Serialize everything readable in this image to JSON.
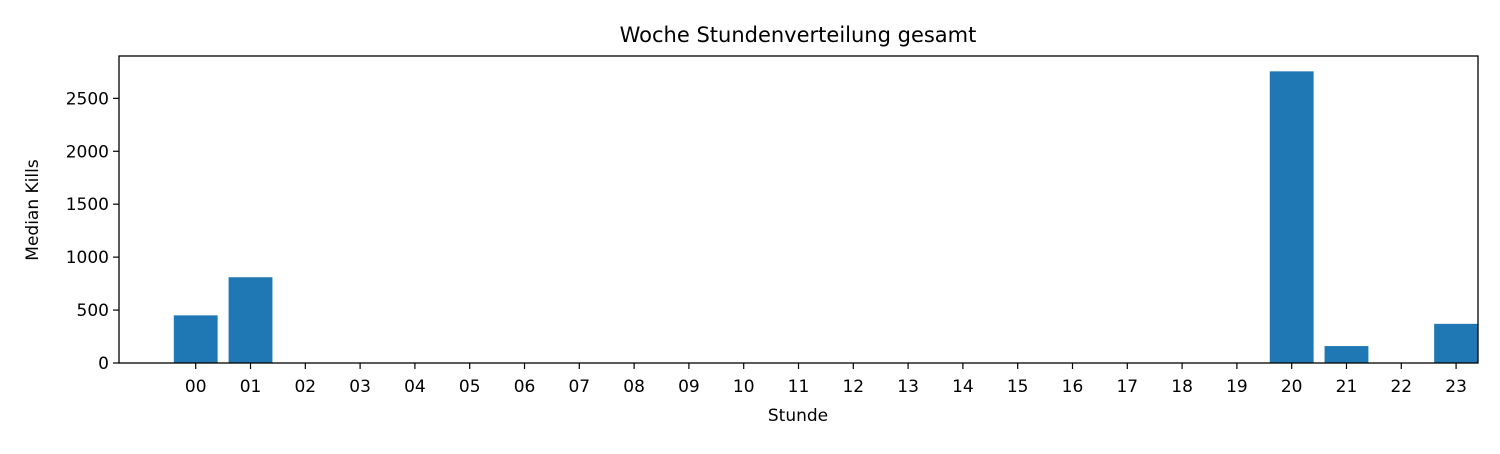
{
  "chart_data": {
    "type": "bar",
    "title": "Woche Stundenverteilung gesamt",
    "xlabel": "Stunde",
    "ylabel": "Median Kills",
    "categories": [
      "00",
      "01",
      "02",
      "03",
      "04",
      "05",
      "06",
      "07",
      "08",
      "09",
      "10",
      "11",
      "12",
      "13",
      "14",
      "15",
      "16",
      "17",
      "18",
      "19",
      "20",
      "21",
      "22",
      "23"
    ],
    "values": [
      450,
      810,
      0,
      0,
      0,
      0,
      0,
      0,
      0,
      0,
      0,
      0,
      0,
      0,
      0,
      0,
      0,
      0,
      0,
      0,
      2755,
      160,
      0,
      370
    ],
    "yticks": [
      0,
      500,
      1000,
      1500,
      2000,
      2500
    ],
    "ylim": [
      0,
      2900
    ],
    "grid": false,
    "legend": "none",
    "colors": {
      "bar": "#1f77b4",
      "axis": "#000000"
    }
  }
}
